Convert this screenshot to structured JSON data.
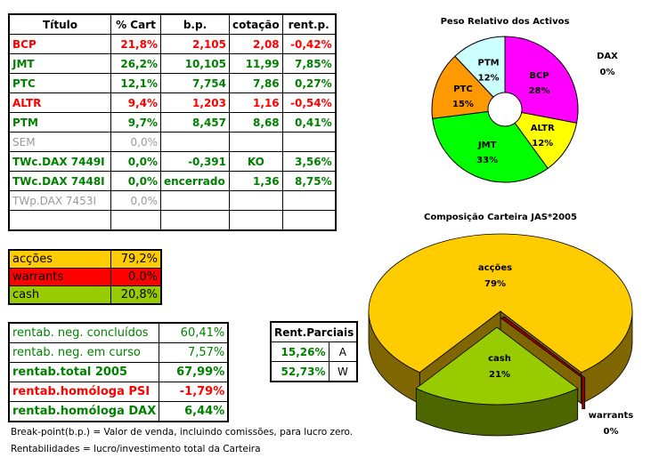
{
  "main_table": {
    "headers": [
      "Título",
      "% Cart",
      "b.p.",
      "cotação",
      "rent.p."
    ],
    "rows": [
      {
        "cells": [
          "BCP",
          "21,8%",
          "2,105",
          "2,08",
          "-0,42%"
        ],
        "style": "r"
      },
      {
        "cells": [
          "JMT",
          "26,2%",
          "10,105",
          "11,99",
          "7,85%"
        ],
        "style": "g"
      },
      {
        "cells": [
          "PTC",
          "12,1%",
          "7,754",
          "7,86",
          "0,27%"
        ],
        "style": "g"
      },
      {
        "cells": [
          "ALTR",
          "9,4%",
          "1,203",
          "1,16",
          "-0,54%"
        ],
        "style": "r"
      },
      {
        "cells": [
          "PTM",
          "9,7%",
          "8,457",
          "8,68",
          "0,41%"
        ],
        "style": "g"
      },
      {
        "cells": [
          "SEM",
          "0,0%",
          "",
          "",
          ""
        ],
        "style": "gr"
      },
      {
        "cells": [
          "TWc.DAX 7449I",
          "0,0%",
          "-0,391",
          "KO",
          "3,56%"
        ],
        "style": "g"
      },
      {
        "cells": [
          "TWc.DAX 7448I",
          "0,0%",
          "encerrado",
          "1,36",
          "8,75%"
        ],
        "style": "g"
      },
      {
        "cells": [
          "TWp.DAX 7453I",
          "0,0%",
          "",
          "",
          ""
        ],
        "style": "gr"
      },
      {
        "cells": [
          "",
          "",
          "",
          "",
          ""
        ],
        "style": ""
      }
    ]
  },
  "composition_table": [
    {
      "label": "acções",
      "value": "79,2%",
      "color": "#ffcc00"
    },
    {
      "label": "warrants",
      "value": "0,0%",
      "color": "#ff0000"
    },
    {
      "label": "cash",
      "value": "20,8%",
      "color": "#99cc00"
    }
  ],
  "rentab_table": [
    {
      "label": "rentab. neg. concluídos",
      "value": "60,41%",
      "style": "g"
    },
    {
      "label": "rentab. neg. em curso",
      "value": "7,57%",
      "style": "g"
    },
    {
      "label": "rentab.total 2005",
      "value": "67,99%",
      "style": "g b"
    },
    {
      "label": "rentab.homóloga PSI",
      "value": "-1,79%",
      "style": "r b"
    },
    {
      "label": "rentab.homóloga DAX",
      "value": "6,44%",
      "style": "g b"
    }
  ],
  "parciais": {
    "header": "Rent.Parciais",
    "rows": [
      {
        "value": "15,26%",
        "key": "A"
      },
      {
        "value": "52,73%",
        "key": "W"
      }
    ]
  },
  "notes": [
    "Break-point(b.p.) = Valor de venda, incluindo comissões, para lucro zero.",
    "Rentabilidades = lucro/investimento total da Carteira"
  ],
  "chart_data": [
    {
      "type": "pie",
      "variant": "doughnut",
      "title": "Peso Relativo dos Activos",
      "slices": [
        {
          "label": "BCP",
          "value": 28,
          "display": "28%",
          "color": "#ff00ff"
        },
        {
          "label": "ALTR",
          "value": 12,
          "display": "12%",
          "color": "#ffff00"
        },
        {
          "label": "JMT",
          "value": 33,
          "display": "33%",
          "color": "#00ff00"
        },
        {
          "label": "PTC",
          "value": 15,
          "display": "15%",
          "color": "#ff9900"
        },
        {
          "label": "PTM",
          "value": 12,
          "display": "12%",
          "color": "#ccffff"
        },
        {
          "label": "DAX",
          "value": 0,
          "display": "0%",
          "color": "#ffffff"
        }
      ]
    },
    {
      "type": "pie",
      "variant": "3d-exploded",
      "title": "Composição Carteira JAS*2005",
      "slices": [
        {
          "label": "acções",
          "value": 79,
          "display": "79%",
          "color": "#ffcc00",
          "side": "#806600"
        },
        {
          "label": "warrants",
          "value": 0,
          "display": "0%",
          "color": "#990000",
          "side": "#660000"
        },
        {
          "label": "cash",
          "value": 21,
          "display": "21%",
          "color": "#99cc00",
          "side": "#4d6600"
        }
      ]
    }
  ]
}
